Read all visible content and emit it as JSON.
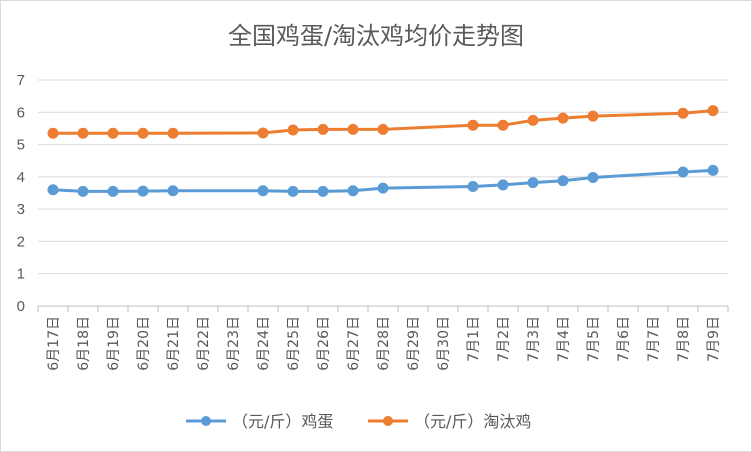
{
  "chart_data": {
    "type": "line",
    "title": "全国鸡蛋/淘汰鸡均价走势图",
    "categories": [
      "6月17日",
      "6月18日",
      "6月19日",
      "6月20日",
      "6月21日",
      "6月22日",
      "6月23日",
      "6月24日",
      "6月25日",
      "6月26日",
      "6月27日",
      "6月28日",
      "6月29日",
      "6月30日",
      "7月1日",
      "7月2日",
      "7月3日",
      "7月4日",
      "7月5日",
      "7月6日",
      "7月7日",
      "7月8日",
      "7月9日"
    ],
    "ylim": [
      0,
      7
    ],
    "yticks": [
      "0",
      "1",
      "2",
      "3",
      "4",
      "5",
      "6",
      "7"
    ],
    "grid": true,
    "legend_position": "bottom",
    "series": [
      {
        "name": "（元/斤）鸡蛋",
        "color": "#5B9BD5",
        "values": [
          3.6,
          3.55,
          3.55,
          3.56,
          3.57,
          null,
          null,
          3.57,
          3.55,
          3.55,
          3.57,
          3.65,
          null,
          null,
          3.7,
          3.75,
          3.82,
          3.88,
          3.98,
          null,
          null,
          4.15,
          4.2
        ]
      },
      {
        "name": "（元/斤）淘汰鸡",
        "color": "#ED7D31",
        "values": [
          5.35,
          5.35,
          5.35,
          5.35,
          5.35,
          null,
          null,
          5.36,
          5.45,
          5.47,
          5.47,
          5.47,
          null,
          null,
          5.6,
          5.6,
          5.75,
          5.82,
          5.88,
          null,
          null,
          5.97,
          6.05
        ]
      }
    ]
  }
}
